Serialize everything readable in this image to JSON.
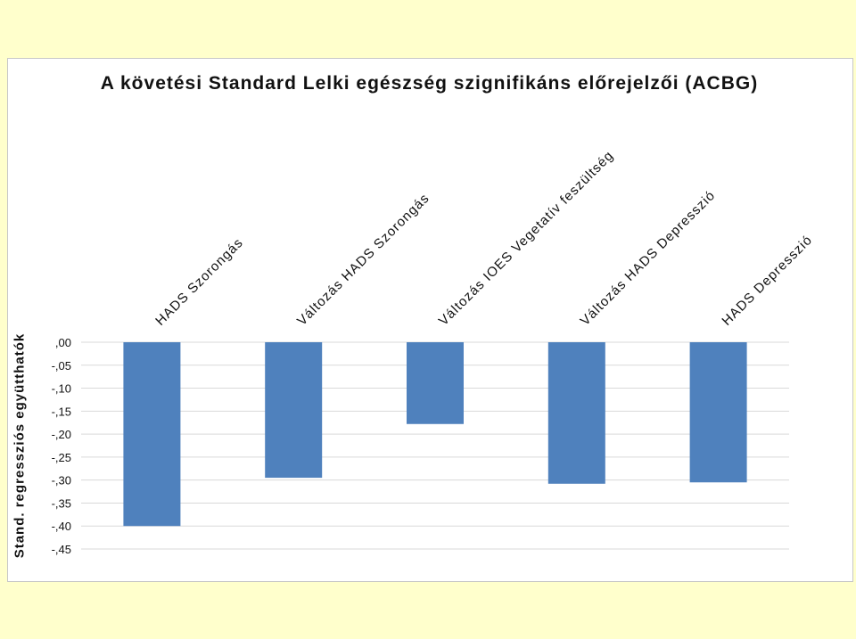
{
  "chart_data": {
    "type": "bar",
    "title": "A követési Standard Lelki egészség szignifikáns előrejelzői (ACBG)",
    "ylabel": "Stand. regressziós együtthatók",
    "xlabel": "",
    "categories": [
      "HADS Szorongás",
      "Változás HADS Szorongás",
      "Változás IOES Vegetatív feszültség",
      "Változás HADS Depresszió",
      "HADS Depresszió"
    ],
    "values": [
      -0.4,
      -0.295,
      -0.178,
      -0.308,
      -0.305
    ],
    "ylim": [
      -0.45,
      0.0
    ],
    "yticks": [
      0.0,
      -0.05,
      -0.1,
      -0.15,
      -0.2,
      -0.25,
      -0.3,
      -0.35,
      -0.4,
      -0.45
    ],
    "ytick_labels": [
      ",00",
      "-,05",
      "-,10",
      "-,15",
      "-,20",
      "-,25",
      "-,30",
      "-,35",
      "-,40",
      "-,45"
    ],
    "grid": true,
    "bar_color": "#4f81bd"
  }
}
